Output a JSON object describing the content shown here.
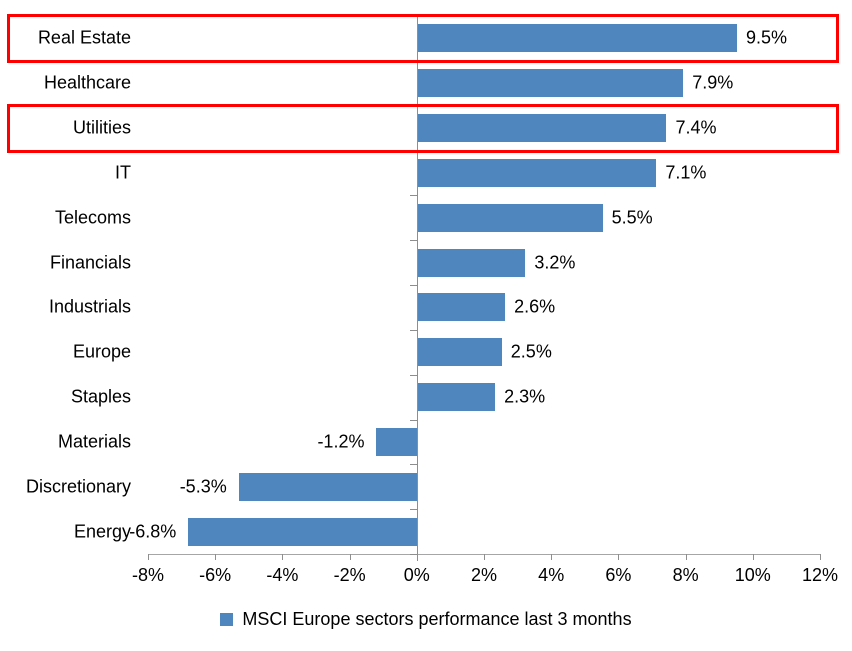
{
  "chart_data": {
    "type": "bar",
    "orientation": "horizontal",
    "title": "",
    "categories": [
      "Real Estate",
      "Healthcare",
      "Utilities",
      "IT",
      "Telecoms",
      "Financials",
      "Industrials",
      "Europe",
      "Staples",
      "Materials",
      "Discretionary",
      "Energy"
    ],
    "values": [
      9.5,
      7.9,
      7.4,
      7.1,
      5.5,
      3.2,
      2.6,
      2.5,
      2.3,
      -1.2,
      -5.3,
      -6.8
    ],
    "value_labels": [
      "9.5%",
      "7.9%",
      "7.4%",
      "7.1%",
      "5.5%",
      "3.2%",
      "2.6%",
      "2.5%",
      "2.3%",
      "-1.2%",
      "-5.3%",
      "-6.8%"
    ],
    "x_axis": {
      "min": -8,
      "max": 12,
      "step": 2,
      "tick_labels": [
        "-8%",
        "-6%",
        "-4%",
        "-2%",
        "0%",
        "2%",
        "4%",
        "6%",
        "8%",
        "10%",
        "12%"
      ]
    },
    "grid": false,
    "bar_color": "#4f86be",
    "axis_color": "#8e8e8e",
    "highlight_color": "#ff0000",
    "highlighted_categories": [
      "Real Estate",
      "Utilities"
    ],
    "legend": {
      "position": "bottom",
      "marker_color": "#4f86be",
      "label": "MSCI Europe sectors performance last 3 months"
    }
  }
}
